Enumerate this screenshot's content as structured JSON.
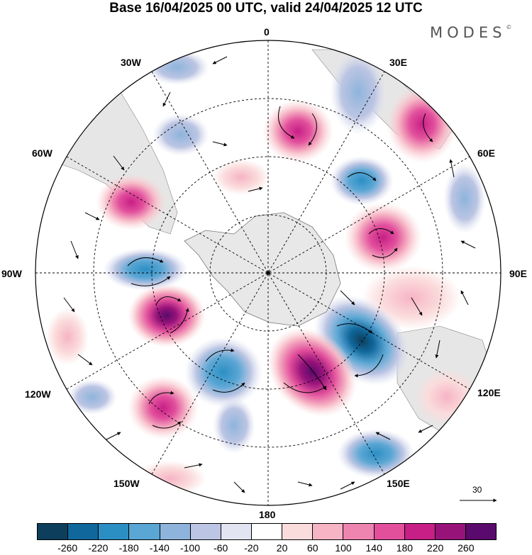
{
  "title": "Base 16/04/2025 00 UTC, valid 24/04/2025 12 UTC",
  "logo": {
    "text": "MODES",
    "mark": "©"
  },
  "longitude_labels": {
    "lon_0": "0",
    "lon_30e": "30E",
    "lon_60e": "60E",
    "lon_90e": "90E",
    "lon_120e": "120E",
    "lon_150e": "150E",
    "lon_180": "180",
    "lon_150w": "150W",
    "lon_120w": "120W",
    "lon_90w": "90W",
    "lon_60w": "60W",
    "lon_30w": "30W"
  },
  "reference_vector": {
    "value": "30"
  },
  "colorbar": {
    "colors": [
      "#0d3e5c",
      "#10679b",
      "#2c8fc4",
      "#5aa6d4",
      "#8eb4dc",
      "#bcc5e3",
      "#e2e4f2",
      "#ffffff",
      "#fbdcdc",
      "#f6b4c4",
      "#ee85b1",
      "#e2509c",
      "#c71f86",
      "#97137a",
      "#5a0a6c"
    ],
    "labels": [
      "-260",
      "-220",
      "-180",
      "-140",
      "-100",
      "-60",
      "-20",
      "20",
      "60",
      "100",
      "140",
      "180",
      "220",
      "260"
    ]
  }
}
